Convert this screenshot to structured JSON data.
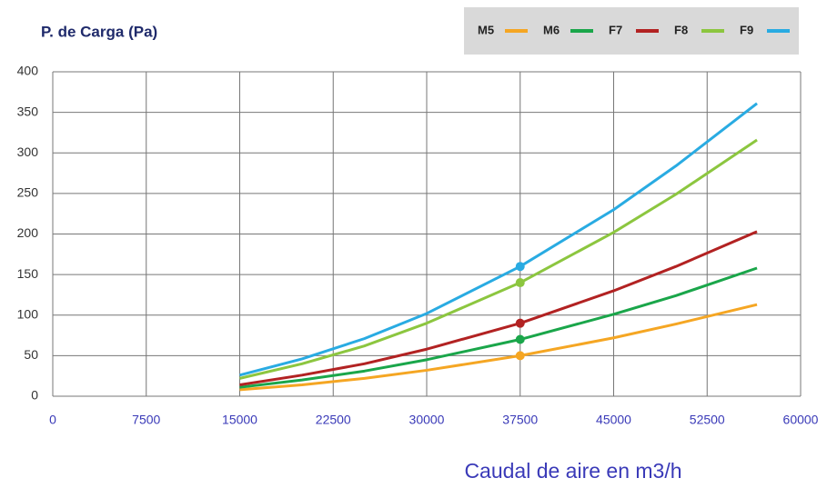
{
  "chart_data": {
    "type": "line",
    "title": "P. de Carga (Pa)",
    "xlabel": "Caudal de aire en m3/h",
    "x": [
      15000,
      20000,
      25000,
      30000,
      37500,
      45000,
      50000,
      56500
    ],
    "series": [
      {
        "name": "M5",
        "color": "#f5a623",
        "values": [
          8,
          14,
          22,
          32,
          50,
          72,
          89,
          113
        ]
      },
      {
        "name": "M6",
        "color": "#1aa64a",
        "values": [
          11,
          20,
          31,
          45,
          70,
          101,
          124,
          158
        ]
      },
      {
        "name": "F7",
        "color": "#b22222",
        "values": [
          14,
          26,
          40,
          58,
          90,
          130,
          160,
          203
        ]
      },
      {
        "name": "F8",
        "color": "#8cc63f",
        "values": [
          22,
          40,
          62,
          90,
          140,
          202,
          249,
          316
        ]
      },
      {
        "name": "F9",
        "color": "#29abe2",
        "values": [
          26,
          46,
          71,
          102,
          160,
          230,
          284,
          361
        ]
      }
    ],
    "marker_x": 37500,
    "xlim": [
      0,
      60000
    ],
    "xticks": [
      0,
      7500,
      15000,
      22500,
      30000,
      37500,
      45000,
      52500,
      60000
    ],
    "ylim": [
      0,
      400
    ],
    "yticks": [
      0,
      50,
      100,
      150,
      200,
      250,
      300,
      350,
      400
    ],
    "grid": true
  }
}
